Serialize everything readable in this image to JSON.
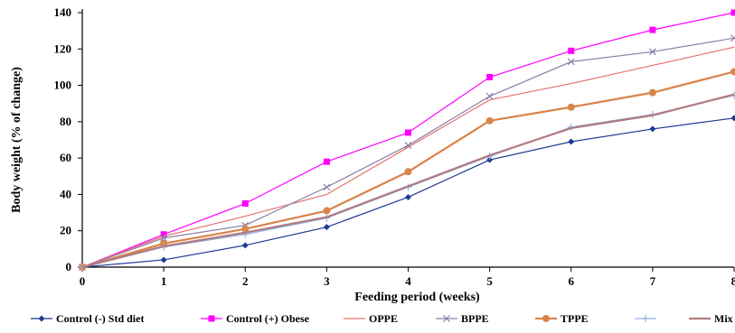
{
  "chart_data": {
    "type": "line",
    "title": "",
    "xlabel": "Feeding period (weeks)",
    "ylabel": "Body weight (% of change)",
    "x": [
      0,
      1,
      2,
      3,
      4,
      5,
      6,
      7,
      8
    ],
    "xlim": [
      0,
      8
    ],
    "ylim": [
      0,
      140
    ],
    "yticks": [
      0,
      20,
      40,
      60,
      80,
      100,
      120,
      140
    ],
    "grid": false,
    "legend_position": "bottom",
    "series": [
      {
        "name": "Control (-) Std diet",
        "color": "#1f3a93",
        "marker": "diamond",
        "values": [
          0,
          4,
          12,
          22,
          38.5,
          59,
          69,
          76,
          82
        ]
      },
      {
        "name": "Control (+) Obese",
        "color": "#ff00ff",
        "marker": "square",
        "values": [
          0,
          18,
          35,
          58,
          74,
          104.5,
          119,
          130.5,
          140
        ]
      },
      {
        "name": "OPPE",
        "color": "#e8736e",
        "marker": "none",
        "values": [
          0,
          17,
          28,
          40,
          66,
          92,
          101,
          111,
          121
        ]
      },
      {
        "name": "BPPE",
        "color": "#8a7fa8",
        "marker": "x",
        "values": [
          0,
          16,
          23,
          44,
          67,
          94,
          113,
          118.5,
          126
        ]
      },
      {
        "name": "TPPE",
        "color": "#d8844a",
        "marker": "circle",
        "values": [
          0,
          13,
          21,
          31,
          52.5,
          80.5,
          88,
          96,
          107.5
        ]
      },
      {
        "name": "",
        "color": "#8fb4e0",
        "marker": "plus",
        "values": [
          0,
          11,
          18,
          27,
          44,
          61,
          77,
          84,
          94.5
        ]
      },
      {
        "name": "Mix",
        "color": "#b07a80",
        "marker": "none",
        "values": [
          0,
          11.5,
          19,
          27.5,
          44.5,
          61.5,
          76.5,
          83.5,
          95
        ]
      }
    ]
  }
}
